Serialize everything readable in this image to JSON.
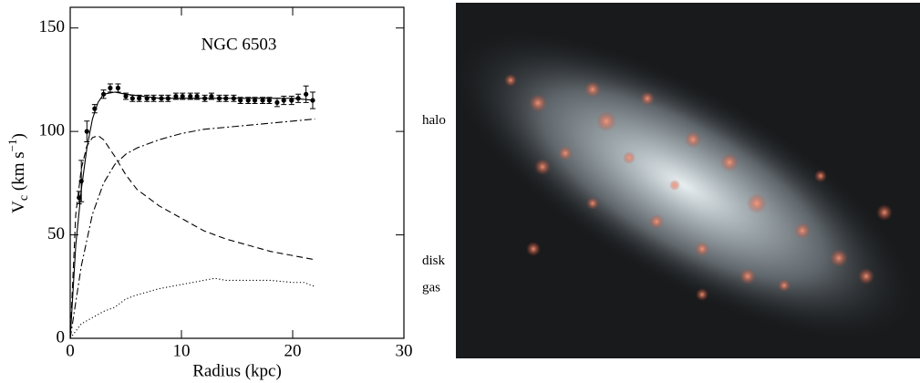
{
  "chart_data": {
    "type": "line",
    "title": "NGC 6503",
    "xlabel": "Radius (kpc)",
    "ylabel": [
      "V",
      "c",
      " (km s",
      "−1",
      ")"
    ],
    "xlim": [
      0,
      30
    ],
    "ylim": [
      0,
      160
    ],
    "xticks": [
      0,
      10,
      20,
      30
    ],
    "yticks": [
      0,
      50,
      100,
      150
    ],
    "color": "#000000",
    "points": {
      "x": [
        0.8,
        1.0,
        1.5,
        2.2,
        3.0,
        3.6,
        4.3,
        5.0,
        5.6,
        6.2,
        6.9,
        7.5,
        8.2,
        8.8,
        9.5,
        10.1,
        10.8,
        11.4,
        12.1,
        12.7,
        13.4,
        14.0,
        14.7,
        15.3,
        16.0,
        16.6,
        17.3,
        17.9,
        18.6,
        19.2,
        19.9,
        20.5,
        21.2,
        21.8
      ],
      "values": [
        68,
        76,
        100,
        111,
        118,
        121,
        121,
        117,
        116,
        116,
        116,
        116,
        116,
        116,
        117,
        117,
        117,
        117,
        116,
        117,
        116,
        116,
        116,
        115,
        115,
        115,
        115,
        115,
        114,
        115,
        115,
        116,
        118,
        115
      ],
      "errors": [
        3,
        10,
        5,
        2,
        2,
        2,
        2,
        1.5,
        1.5,
        1.5,
        1.5,
        1.5,
        1.5,
        1.5,
        1.5,
        1.5,
        1.5,
        1.5,
        1.5,
        1.5,
        1.5,
        1.5,
        1.5,
        1.5,
        1.5,
        1.5,
        1.5,
        1.5,
        2,
        2,
        2,
        2,
        4,
        4
      ]
    },
    "series": [
      {
        "style": "solid",
        "x": [
          0,
          0.5,
          1,
          1.5,
          2,
          2.5,
          3,
          4,
          5,
          8,
          12,
          16,
          20,
          22
        ],
        "values": [
          0,
          45,
          72,
          92,
          106,
          114,
          118,
          119,
          118,
          116,
          116,
          116,
          116,
          115
        ]
      },
      {
        "name": "halo",
        "style": "dashdot",
        "x": [
          0,
          1,
          2,
          3,
          4,
          5,
          6,
          8,
          10,
          12,
          14,
          16,
          18,
          20,
          22
        ],
        "values": [
          0,
          35,
          60,
          75,
          84,
          89,
          92,
          96,
          99,
          101,
          102,
          103,
          104,
          105,
          106
        ]
      },
      {
        "name": "disk",
        "style": "dashed",
        "x": [
          0,
          0.5,
          1,
          1.5,
          2,
          2.5,
          3,
          4,
          5,
          6,
          8,
          10,
          12,
          14,
          16,
          18,
          20,
          22
        ],
        "values": [
          0,
          60,
          82,
          93,
          97,
          98,
          96,
          88,
          79,
          72,
          64,
          58,
          52,
          48,
          45,
          42,
          40,
          38
        ]
      },
      {
        "name": "gas",
        "style": "dotted",
        "x": [
          0,
          1,
          2,
          3,
          4,
          5,
          6,
          8,
          10,
          12,
          13,
          14,
          16,
          18,
          20,
          21,
          22
        ],
        "values": [
          0,
          7,
          10,
          13,
          15,
          19,
          21,
          24,
          26,
          28,
          29,
          28,
          28,
          28,
          27,
          27,
          25
        ]
      }
    ]
  }
}
